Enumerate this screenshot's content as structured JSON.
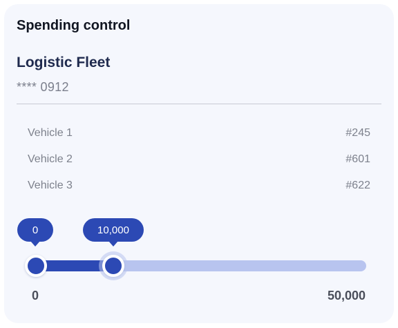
{
  "card": {
    "title": "Spending control"
  },
  "account": {
    "name": "Logistic Fleet",
    "number": "**** 0912"
  },
  "vehicles": [
    {
      "label": "Vehicle 1",
      "id": "#245"
    },
    {
      "label": "Vehicle 2",
      "id": "#601"
    },
    {
      "label": "Vehicle 3",
      "id": "#622"
    }
  ],
  "slider": {
    "min_value_label": "0",
    "max_value_label": "10,000",
    "range_min_label": "0",
    "range_max_label": "50,000",
    "range_min": 0,
    "range_max": 50000,
    "selected_min": 0,
    "selected_max": 10000,
    "accent_color": "#2c49b4",
    "track_color": "#b8c4ef"
  }
}
